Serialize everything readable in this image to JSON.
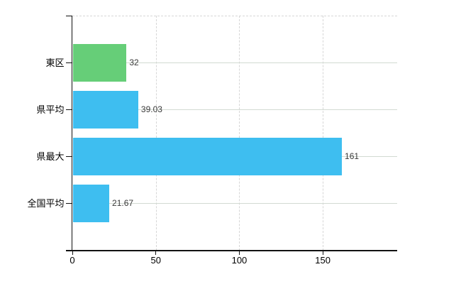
{
  "chart_data": {
    "type": "bar",
    "orientation": "horizontal",
    "title": "",
    "xlabel": "",
    "ylabel": "",
    "xlim": [
      0,
      194
    ],
    "grid": true,
    "legend": "none",
    "categories": [
      "東区",
      "県平均",
      "県最大",
      "全国平均"
    ],
    "values": [
      32,
      39.03,
      161,
      21.67
    ],
    "points": [
      {
        "category": "東区",
        "value": 32,
        "label": "32",
        "color": "#66ce78"
      },
      {
        "category": "県平均",
        "value": 39.03,
        "label": "39.03",
        "color": "#3ebef0"
      },
      {
        "category": "県最大",
        "value": 161,
        "label": "161",
        "color": "#3ebef0"
      },
      {
        "category": "全国平均",
        "value": 21.67,
        "label": "21.67",
        "color": "#3ebef0"
      }
    ],
    "x_ticks": [
      0,
      50,
      100,
      150
    ],
    "x_tick_labels": [
      "0",
      "50",
      "100",
      "150"
    ]
  },
  "colors": {
    "bar_blue": "#3ebef0",
    "bar_green": "#66ce78",
    "axis": "#111111",
    "grid_horizontal": "#d2dad2",
    "grid_vertical": "#d6d6d6",
    "value_text": "#3a3a3a",
    "label_text": "#000000",
    "background": "#ffffff"
  }
}
